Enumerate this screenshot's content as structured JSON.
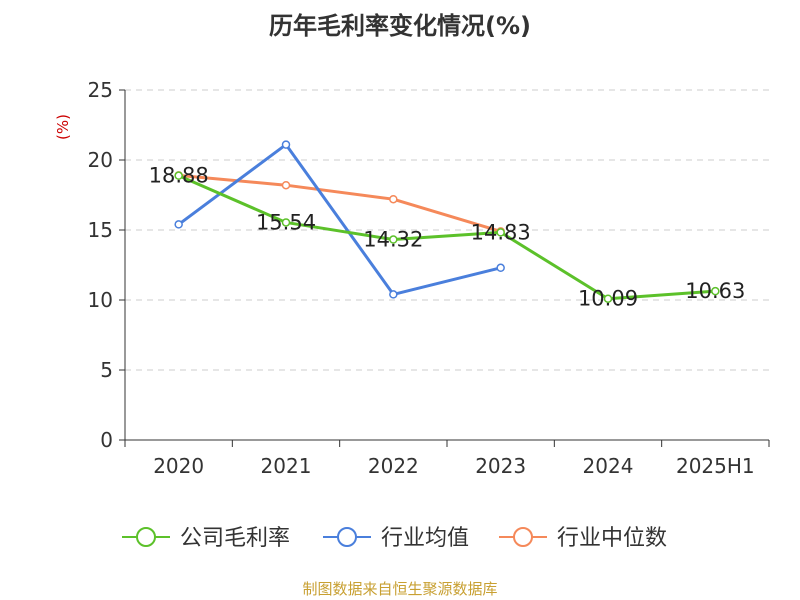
{
  "chart_data": {
    "type": "line",
    "title": "历年毛利率变化情况(%)",
    "ylabel": "(%)",
    "ylim": [
      0,
      25
    ],
    "yticks": [
      0,
      5,
      10,
      15,
      20,
      25
    ],
    "categories": [
      "2020",
      "2021",
      "2022",
      "2023",
      "2024",
      "2025H1"
    ],
    "grid": true,
    "legend_position": "bottom",
    "series": [
      {
        "name": "公司毛利率",
        "color": "#5cc12a",
        "values": [
          18.88,
          15.54,
          14.32,
          14.83,
          10.09,
          10.63
        ],
        "labels": [
          "18.88",
          "15.54",
          "14.32",
          "14.83",
          "10.09",
          "10.63"
        ]
      },
      {
        "name": "行业均值",
        "color": "#4a7fdc",
        "values": [
          15.4,
          21.1,
          10.4,
          12.3,
          null,
          null
        ]
      },
      {
        "name": "行业中位数",
        "color": "#f5895a",
        "values": [
          18.9,
          18.2,
          17.2,
          14.9,
          null,
          null
        ]
      }
    ]
  },
  "source": "制图数据来自恒生聚源数据库"
}
